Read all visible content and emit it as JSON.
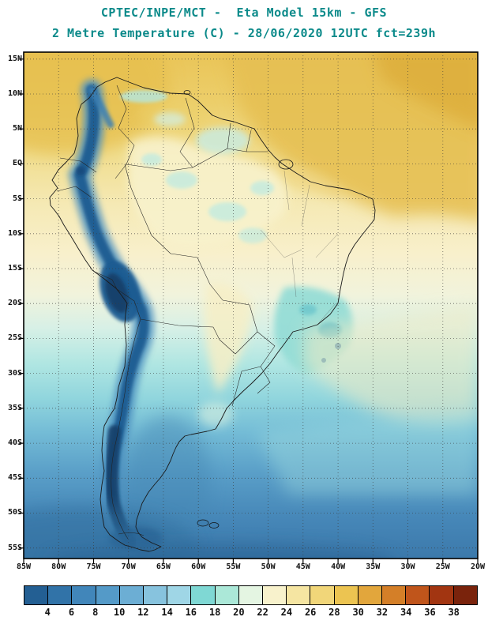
{
  "header": {
    "title_line1": "CPTEC/INPE/MCT -  Eta Model 15km - GFS",
    "title_line2": "2 Metre Temperature (C) - 28/06/2020 12UTC fct=239h",
    "title_color": "#0b8a8a"
  },
  "map": {
    "lat_labels": [
      "15N",
      "10N",
      "5N",
      "EQ",
      "5S",
      "10S",
      "15S",
      "20S",
      "25S",
      "30S",
      "35S",
      "40S",
      "45S",
      "50S",
      "55S"
    ],
    "lon_labels": [
      "85W",
      "80W",
      "75W",
      "70W",
      "65W",
      "60W",
      "55W",
      "50W",
      "45W",
      "40W",
      "35W",
      "30W",
      "25W",
      "20W"
    ]
  },
  "colorbar": {
    "tick_labels": [
      "4",
      "6",
      "8",
      "10",
      "12",
      "14",
      "16",
      "18",
      "20",
      "22",
      "24",
      "26",
      "28",
      "30",
      "32",
      "34",
      "36",
      "38"
    ],
    "segment_colors": [
      "#235f93",
      "#3173a8",
      "#4186ba",
      "#549ac8",
      "#6caed4",
      "#87c3de",
      "#9fd6e6",
      "#7fd8d4",
      "#abe8d8",
      "#e4f5e2",
      "#f8f2cc",
      "#f5e5a2",
      "#f1d679",
      "#ecc451",
      "#e2a63c",
      "#d47f28",
      "#c0551b",
      "#a23511",
      "#7a230c"
    ]
  },
  "chart_data": {
    "type": "heatmap",
    "title": "2 Metre Temperature (C)",
    "source": "CPTEC/INPE/MCT",
    "model": "Eta Model 15km - GFS",
    "valid": "28/06/2020 12UTC fct=239h",
    "region": "South America",
    "lat_ticks": [
      "15N",
      "10N",
      "5N",
      "EQ",
      "5S",
      "10S",
      "15S",
      "20S",
      "25S",
      "30S",
      "35S",
      "40S",
      "45S",
      "50S",
      "55S"
    ],
    "lon_ticks": [
      "85W",
      "80W",
      "75W",
      "70W",
      "65W",
      "60W",
      "55W",
      "50W",
      "45W",
      "40W",
      "35W",
      "30W",
      "25W",
      "20W"
    ],
    "scale_values_c": [
      4,
      6,
      8,
      10,
      12,
      14,
      16,
      18,
      20,
      22,
      24,
      26,
      28,
      30,
      32,
      34,
      36,
      38
    ],
    "scale_colors": [
      "#235f93",
      "#3173a8",
      "#4186ba",
      "#549ac8",
      "#6caed4",
      "#87c3de",
      "#9fd6e6",
      "#7fd8d4",
      "#abe8d8",
      "#e4f5e2",
      "#f8f2cc",
      "#f5e5a2",
      "#f1d679",
      "#ecc451",
      "#e2a63c",
      "#d47f28",
      "#c0551b",
      "#a23511",
      "#7a230c"
    ],
    "legend_position": "bottom",
    "grid": "dotted 5-degree graticule"
  }
}
